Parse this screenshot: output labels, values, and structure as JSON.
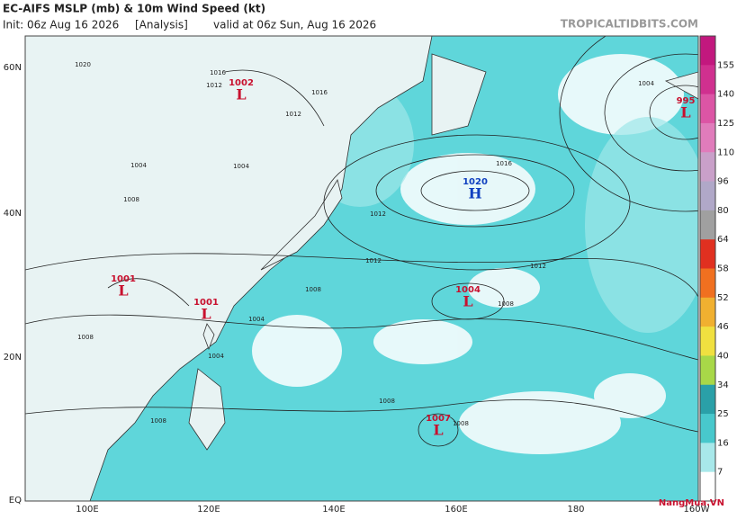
{
  "header": {
    "title": "EC-AIFS MSLP (mb) & 10m Wind Speed (kt)",
    "init": "Init: 06z Aug 16 2026",
    "run": "[Analysis]",
    "valid": "valid at 06z Sun, Aug 16 2026",
    "source": "TROPICALTIDBITS.COM"
  },
  "latitudes": [
    "60N",
    "40N",
    "20N",
    "EQ"
  ],
  "longitudes": [
    "100E",
    "120E",
    "140E",
    "160E",
    "180",
    "160W"
  ],
  "centers": [
    {
      "symbol": "L",
      "pressure": "1002"
    },
    {
      "symbol": "L",
      "pressure": "1001"
    },
    {
      "symbol": "L",
      "pressure": "1001"
    },
    {
      "symbol": "H",
      "pressure": "1020"
    },
    {
      "symbol": "L",
      "pressure": "1004"
    },
    {
      "symbol": "L",
      "pressure": "1007"
    },
    {
      "symbol": "L",
      "pressure": "995"
    }
  ],
  "isobar_labels": [
    "1020",
    "1016",
    "1012",
    "1016",
    "1012",
    "1004",
    "1008",
    "1004",
    "1016",
    "1012",
    "1012",
    "1008",
    "1008",
    "1004",
    "1008",
    "1012",
    "1008",
    "1008",
    "1004",
    "1004",
    "1008"
  ],
  "colorbar": {
    "ticks": [
      "155",
      "140",
      "125",
      "110",
      "96",
      "80",
      "64",
      "58",
      "52",
      "46",
      "40",
      "34",
      "25",
      "16",
      "7"
    ]
  },
  "watermark": "NangMua.VN"
}
